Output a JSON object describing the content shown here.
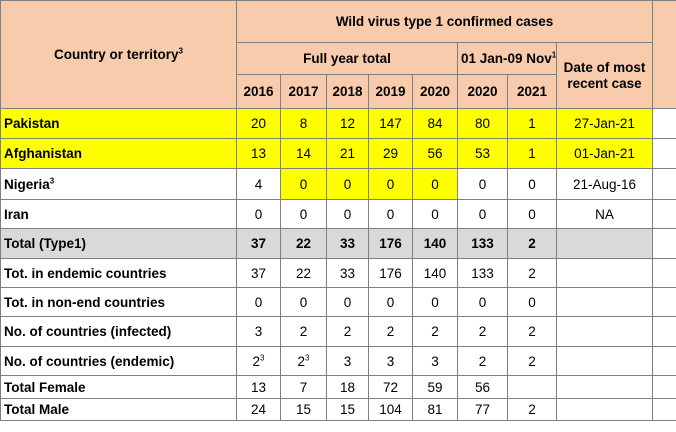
{
  "header": {
    "title": "Wild virus type 1 confirmed cases",
    "country_label": "Country or territory",
    "country_sup": "3",
    "full_year": "Full year total",
    "period": "01 Jan-09 Nov",
    "period_sup": "1",
    "recent": "Date of most recent case",
    "years": [
      "2016",
      "2017",
      "2018",
      "2019",
      "2020",
      "2020",
      "2021"
    ]
  },
  "rows": [
    {
      "label": "Pakistan",
      "values": [
        "20",
        "8",
        "12",
        "147",
        "84",
        "80",
        "1"
      ],
      "date": "27-Jan-21"
    },
    {
      "label": "Afghanistan",
      "values": [
        "13",
        "14",
        "21",
        "29",
        "56",
        "53",
        "1"
      ],
      "date": "01-Jan-21"
    },
    {
      "label": "Nigeria",
      "sup": "3",
      "values": [
        "4",
        "0",
        "0",
        "0",
        "0",
        "0",
        "0"
      ],
      "date": "21-Aug-16"
    },
    {
      "label": "Iran",
      "values": [
        "0",
        "0",
        "0",
        "0",
        "0",
        "0",
        "0"
      ],
      "date": "NA"
    },
    {
      "label": "Total (Type1)",
      "values": [
        "37",
        "22",
        "33",
        "176",
        "140",
        "133",
        "2"
      ],
      "date": ""
    },
    {
      "label": "Tot. in endemic countries",
      "values": [
        "37",
        "22",
        "33",
        "176",
        "140",
        "133",
        "2"
      ],
      "date": ""
    },
    {
      "label": "Tot. in non-end countries",
      "values": [
        "0",
        "0",
        "0",
        "0",
        "0",
        "0",
        "0"
      ],
      "date": ""
    },
    {
      "label": "No. of countries (infected)",
      "values": [
        "3",
        "2",
        "2",
        "2",
        "2",
        "2",
        "2"
      ],
      "date": ""
    },
    {
      "label": "No. of countries (endemic)",
      "values": [
        "2",
        "2",
        "3",
        "3",
        "3",
        "2",
        "2"
      ],
      "value_sups": [
        "3",
        "3",
        "",
        "",
        "",
        "",
        ""
      ],
      "date": ""
    },
    {
      "label": "Total Female",
      "values": [
        "13",
        "7",
        "18",
        "72",
        "59",
        "56",
        ""
      ],
      "date": ""
    },
    {
      "label": "Total Male",
      "values": [
        "24",
        "15",
        "15",
        "104",
        "81",
        "77",
        "2"
      ],
      "date": ""
    }
  ],
  "colors": {
    "header_bg": "#f8cbad",
    "highlight": "#ffff00",
    "total_bg": "#d9d9d9",
    "border": "#7f7f7f"
  }
}
